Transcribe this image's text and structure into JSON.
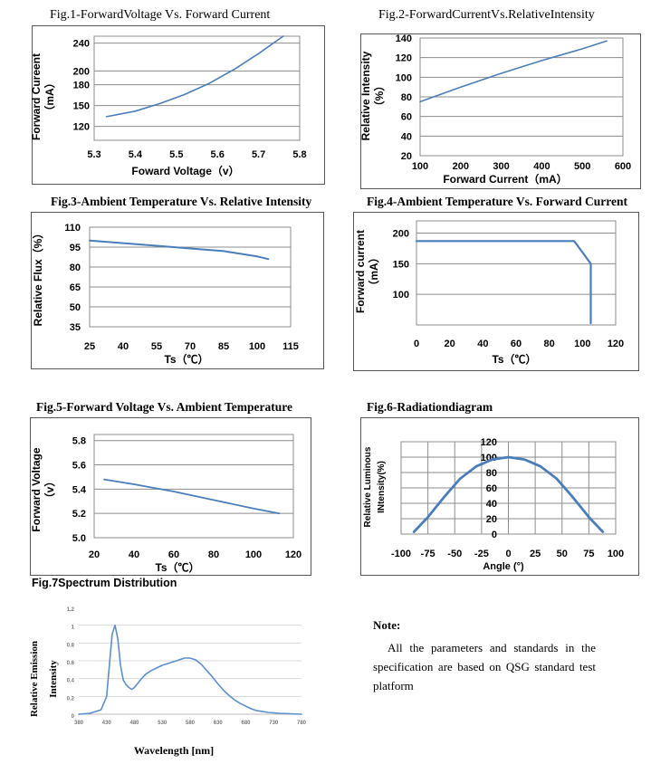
{
  "colors": {
    "line": "#4a7ebb",
    "grid": "#8c8c8c",
    "spectrum": "#5b8fd0"
  },
  "note": {
    "title": "Note:",
    "body": "All the parameters and standards in the specification are based on QSG standard test platform"
  },
  "chart_data": [
    {
      "type": "line",
      "title": "Fig.1-ForwardVoltage Vs. Forward Current",
      "xlabel": "Foward Voltage（v）",
      "ylabel": "Forward Cureent（mA）",
      "xlim": [
        5.3,
        5.8
      ],
      "ylim": [
        100,
        250
      ],
      "xticks": [
        5.3,
        5.4,
        5.5,
        5.6,
        5.7,
        5.8
      ],
      "xtick_labels": [
        "5.3",
        "5.4",
        "5.5",
        "5.6",
        "5.7",
        "5.8"
      ],
      "yticks": [
        120,
        150,
        180,
        200,
        240
      ],
      "ytick_labels": [
        "120",
        "150",
        "180",
        "200",
        "240"
      ],
      "series": [
        {
          "x": [
            5.33,
            5.4,
            5.46,
            5.52,
            5.58,
            5.64,
            5.7,
            5.76
          ],
          "y": [
            134,
            142,
            153,
            166,
            182,
            202,
            225,
            250
          ]
        }
      ]
    },
    {
      "type": "line",
      "title": "Fig.2-ForwardCurrentVs.RelativeIntensity",
      "xlabel": "Forward Current（mA）",
      "ylabel": "Relative Intensity（%）",
      "xlim": [
        100,
        600
      ],
      "ylim": [
        20,
        140
      ],
      "xticks": [
        100,
        200,
        300,
        400,
        500,
        600
      ],
      "xtick_labels": [
        "100",
        "200",
        "300",
        "400",
        "500",
        "600"
      ],
      "yticks": [
        20,
        40,
        60,
        80,
        100,
        120,
        140
      ],
      "ytick_labels": [
        "20",
        "40",
        "60",
        "80",
        "100",
        "120",
        "140"
      ],
      "series": [
        {
          "x": [
            100,
            200,
            300,
            400,
            500,
            560
          ],
          "y": [
            75,
            90,
            104,
            117,
            129,
            137
          ]
        }
      ]
    },
    {
      "type": "line",
      "title": "Fig.3-Ambient Temperature Vs. Relative Intensity",
      "xlabel": "Ts（℃）",
      "ylabel": "Relative Flux（%）",
      "xlim": [
        25,
        115
      ],
      "ylim": [
        35,
        110
      ],
      "xticks": [
        25,
        40,
        55,
        70,
        85,
        100,
        115
      ],
      "xtick_labels": [
        "25",
        "40",
        "55",
        "70",
        "85",
        "100",
        "115"
      ],
      "yticks": [
        35,
        50,
        65,
        80,
        95,
        110
      ],
      "ytick_labels": [
        "35",
        "50",
        "65",
        "80",
        "95",
        "110"
      ],
      "series": [
        {
          "x": [
            25,
            40,
            55,
            70,
            85,
            100,
            105
          ],
          "y": [
            100,
            98,
            96,
            94,
            92,
            88,
            86
          ]
        }
      ]
    },
    {
      "type": "line",
      "title": "Fig.4-Ambient Temperature Vs. Forward Current",
      "xlabel": "Ts（℃）",
      "ylabel": "Forward current（mA）",
      "xlim": [
        0,
        120
      ],
      "ylim": [
        50,
        220
      ],
      "xticks": [
        0,
        20,
        40,
        60,
        80,
        100,
        120
      ],
      "xtick_labels": [
        "0",
        "20",
        "40",
        "60",
        "80",
        "100",
        "120"
      ],
      "yticks": [
        100,
        150,
        200
      ],
      "ytick_labels": [
        "100",
        "150",
        "200"
      ],
      "series": [
        {
          "x": [
            0,
            95,
            105,
            105
          ],
          "y": [
            187,
            187,
            150,
            53
          ]
        }
      ]
    },
    {
      "type": "line",
      "title": "Fig.5-Forward Voltage Vs. Ambient Temperature",
      "xlabel": "Ts（℃）",
      "ylabel": "Forward Voltage（v）",
      "xlim": [
        20,
        120
      ],
      "ylim": [
        5.0,
        5.85
      ],
      "xticks": [
        20,
        40,
        60,
        80,
        100,
        120
      ],
      "xtick_labels": [
        "20",
        "40",
        "60",
        "80",
        "100",
        "120"
      ],
      "yticks": [
        5.0,
        5.2,
        5.4,
        5.6,
        5.8
      ],
      "ytick_labels": [
        "5.0",
        "5.2",
        "5.4",
        "5.6",
        "5.8"
      ],
      "series": [
        {
          "x": [
            25,
            40,
            60,
            80,
            100,
            113
          ],
          "y": [
            5.48,
            5.44,
            5.38,
            5.31,
            5.24,
            5.2
          ]
        }
      ]
    },
    {
      "type": "line",
      "title": "Fig.6-Radiationdiagram",
      "xlabel": "Angle (°)",
      "ylabel": "Relative Luminous INtensity(%)",
      "xlim": [
        -100,
        100
      ],
      "ylim": [
        0,
        120
      ],
      "xticks": [
        -100,
        -75,
        -50,
        -25,
        0,
        25,
        50,
        75,
        100
      ],
      "xtick_labels": [
        "-100",
        "-75",
        "-50",
        "-25",
        "0",
        "25",
        "50",
        "75",
        "100"
      ],
      "yticks": [
        0,
        20,
        40,
        60,
        80,
        100,
        120
      ],
      "ytick_labels": [
        "0",
        "20",
        "40",
        "60",
        "80",
        "100",
        "120"
      ],
      "series": [
        {
          "x": [
            -88,
            -75,
            -60,
            -45,
            -30,
            -15,
            0,
            15,
            30,
            45,
            60,
            75,
            88
          ],
          "y": [
            3,
            22,
            48,
            72,
            88,
            97,
            100,
            97,
            88,
            72,
            48,
            22,
            3
          ]
        }
      ]
    },
    {
      "type": "line",
      "title": "Fig.7Spectrum Distribution",
      "xlabel": "Wavelength [nm]",
      "ylabel": "Relative Emission Intensity",
      "xlim": [
        380,
        780
      ],
      "ylim": [
        0,
        1.2
      ],
      "xticks": [
        380,
        430,
        480,
        530,
        580,
        630,
        680,
        730,
        780
      ],
      "xtick_labels": [
        "380",
        "430",
        "480",
        "530",
        "580",
        "630",
        "680",
        "730",
        "780"
      ],
      "yticks": [
        0,
        0.2,
        0.4,
        0.6,
        0.8,
        1.0,
        1.2
      ],
      "ytick_labels": [
        "0",
        "0.2",
        "0.4",
        "0.6",
        "0.8",
        "1",
        "1.2"
      ],
      "series": [
        {
          "x": [
            380,
            400,
            420,
            430,
            435,
            440,
            445,
            450,
            455,
            460,
            465,
            470,
            475,
            480,
            490,
            500,
            510,
            520,
            530,
            540,
            550,
            560,
            570,
            580,
            590,
            600,
            610,
            620,
            630,
            640,
            650,
            660,
            670,
            680,
            690,
            700,
            720,
            740,
            760,
            780
          ],
          "y": [
            0,
            0.01,
            0.05,
            0.2,
            0.55,
            0.9,
            1.0,
            0.85,
            0.55,
            0.38,
            0.33,
            0.3,
            0.28,
            0.3,
            0.38,
            0.45,
            0.49,
            0.52,
            0.55,
            0.57,
            0.59,
            0.61,
            0.63,
            0.63,
            0.61,
            0.56,
            0.49,
            0.42,
            0.34,
            0.27,
            0.21,
            0.16,
            0.12,
            0.09,
            0.06,
            0.04,
            0.02,
            0.01,
            0.005,
            0
          ]
        }
      ]
    }
  ]
}
